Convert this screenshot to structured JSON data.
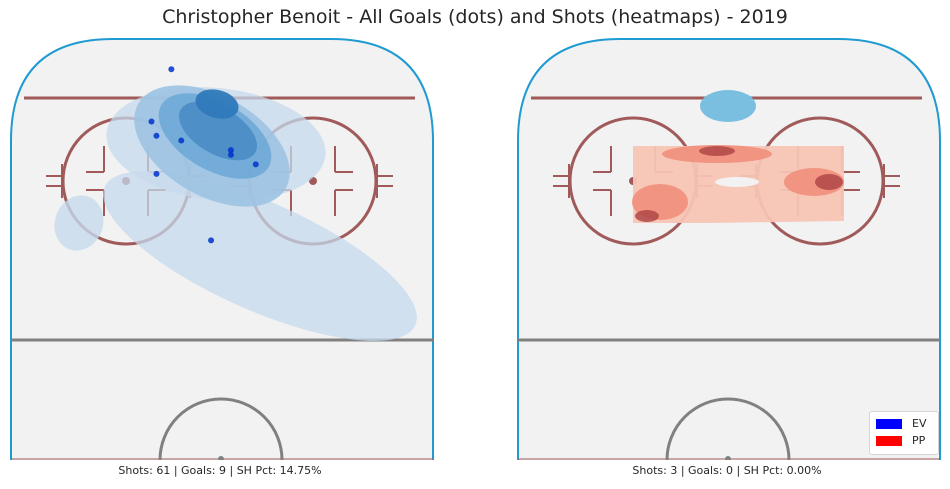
{
  "title": "Christopher Benoit - All Goals (dots) and Shots (heatmaps) - 2019",
  "colors": {
    "ev": "#0000ff",
    "pp": "#ff0000",
    "rink_border": "#1f9bd1",
    "rink_ice": "#f2f2f2",
    "goal_line": "#a05a5a",
    "circle": "#a05a5a",
    "center_line": "#808080",
    "goal_dot": "#0033cc"
  },
  "legend": {
    "placement": "lower-right",
    "items": [
      {
        "label": "EV",
        "color": "#0000ff"
      },
      {
        "label": "PP",
        "color": "#ff0000"
      }
    ]
  },
  "chart_data": [
    {
      "type": "heatmap",
      "panel": "left",
      "strength": "EV",
      "caption": "Shots: 61 | Goals: 9 | SH Pct: 14.75%",
      "summary": {
        "shots": 61,
        "goals": 9,
        "sh_pct": 14.75
      },
      "goals": [
        {
          "x": -10,
          "y": 82
        },
        {
          "x": -14,
          "y": 71
        },
        {
          "x": -13,
          "y": 68
        },
        {
          "x": -8,
          "y": 67
        },
        {
          "x": 2,
          "y": 65
        },
        {
          "x": 2,
          "y": 64
        },
        {
          "x": 7,
          "y": 62
        },
        {
          "x": -13,
          "y": 60
        },
        {
          "x": -2,
          "y": 46
        }
      ]
    },
    {
      "type": "heatmap",
      "panel": "right",
      "strength": "PP",
      "caption": "Shots: 3 | Goals: 0 | SH Pct: 0.00%",
      "summary": {
        "shots": 3,
        "goals": 0,
        "sh_pct": 0.0
      },
      "goals": []
    }
  ]
}
